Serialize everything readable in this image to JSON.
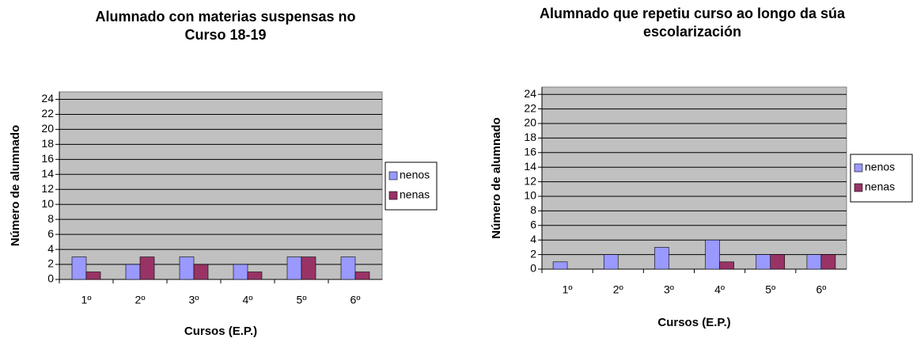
{
  "chart_data": [
    {
      "type": "bar",
      "title": "Alumnado con materias suspensas no Curso 18-19",
      "ylabel": "Número de alumnado",
      "xlabel": "Cursos (E.P.)",
      "categories": [
        "1º",
        "2º",
        "3º",
        "4º",
        "5º",
        "6º"
      ],
      "series": [
        {
          "name": "nenos",
          "color": "#9999ff",
          "values": [
            3,
            2,
            3,
            2,
            3,
            3
          ]
        },
        {
          "name": "nenas",
          "color": "#993366",
          "values": [
            1,
            3,
            2,
            1,
            3,
            1
          ]
        }
      ],
      "ylim": [
        0,
        25
      ],
      "yticks": [
        0,
        2,
        4,
        6,
        8,
        10,
        12,
        14,
        16,
        18,
        20,
        22,
        24
      ],
      "grid": true,
      "legend": "right"
    },
    {
      "type": "bar",
      "title": "Alumnado que repetiu curso ao longo da súa escolarización",
      "ylabel": "Número de alumnado",
      "xlabel": "Cursos (E.P.)",
      "categories": [
        "1º",
        "2º",
        "3º",
        "4º",
        "5º",
        "6º"
      ],
      "series": [
        {
          "name": "nenos",
          "color": "#9999ff",
          "values": [
            1,
            2,
            3,
            4,
            2,
            2
          ]
        },
        {
          "name": "nenas",
          "color": "#993366",
          "values": [
            0,
            0,
            0,
            1,
            2,
            2
          ]
        }
      ],
      "ylim": [
        0,
        25
      ],
      "yticks": [
        0,
        2,
        4,
        6,
        8,
        10,
        12,
        14,
        16,
        18,
        20,
        22,
        24
      ],
      "grid": true,
      "legend": "right"
    }
  ]
}
